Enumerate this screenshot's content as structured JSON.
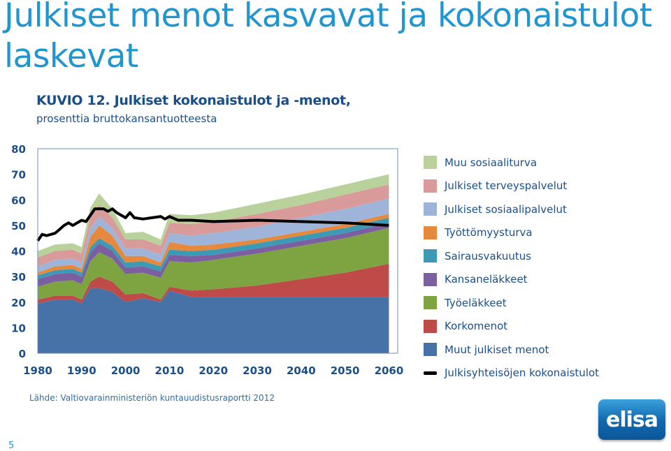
{
  "slide": {
    "title_line1": "Julkiset menot kasvavat ja kokonaistulot",
    "title_line2": "laskevat",
    "source": "Lähde: Valtiovarainministeriön kuntauudistusraportti 2012",
    "page_number": "5",
    "logo_text": "elisa"
  },
  "chart_data": {
    "type": "area",
    "title": "KUVIO 12. Julkiset kokonaistulot ja -menot,",
    "subtitle": "prosenttia bruttokansantuotteesta",
    "ylim": [
      0,
      80
    ],
    "xlim": [
      1980,
      2062
    ],
    "y_ticks": [
      "0",
      "10",
      "20",
      "30",
      "40",
      "50",
      "60",
      "70",
      "80"
    ],
    "x_ticks": [
      "1980",
      "1990",
      "2000",
      "2010",
      "2020",
      "2030",
      "2040",
      "2050",
      "2060"
    ],
    "stacked": true,
    "x": [
      1980,
      1984,
      1988,
      1990,
      1992,
      1994,
      1997,
      2000,
      2004,
      2008,
      2010,
      2015,
      2020,
      2030,
      2040,
      2050,
      2060
    ],
    "series": [
      {
        "name": "Muut julkiset menot",
        "color": "#4672a8",
        "values": [
          19.5,
          21,
          21,
          19.5,
          25.5,
          25.5,
          24,
          20,
          21.5,
          20,
          24.5,
          22,
          22,
          22,
          22,
          22,
          22
        ]
      },
      {
        "name": "Korkomenot",
        "color": "#be4b48",
        "values": [
          1.5,
          1.5,
          1.5,
          1.5,
          2.5,
          4.5,
          4,
          3,
          2,
          1,
          1.5,
          2.5,
          3,
          4.5,
          7,
          9.5,
          13
        ]
      },
      {
        "name": "Työeläkkeet",
        "color": "#7ea441",
        "values": [
          5,
          5.5,
          6,
          6,
          8,
          9.5,
          9,
          8,
          8,
          8.5,
          10,
          11,
          11.5,
          12.5,
          13,
          13.5,
          14
        ]
      },
      {
        "name": "Kansaneläkkeet",
        "color": "#7b5fa1",
        "values": [
          3,
          3,
          3,
          3,
          3.5,
          3.5,
          3,
          2.5,
          2.5,
          2.5,
          2.5,
          2.5,
          2,
          2,
          2,
          2,
          2
        ]
      },
      {
        "name": "Sairausvakuutus",
        "color": "#3c9ab5",
        "values": [
          1.5,
          1.5,
          1.5,
          1.5,
          2,
          2,
          2,
          2,
          2,
          2,
          2,
          2,
          2,
          2,
          2,
          2,
          2
        ]
      },
      {
        "name": "Työttömyysturva",
        "color": "#e6893d",
        "values": [
          1,
          1.5,
          1.5,
          1.5,
          4,
          5,
          4,
          2.5,
          2,
          1.5,
          3,
          2,
          2,
          1.5,
          1.5,
          1.5,
          1.5
        ]
      },
      {
        "name": "Julkiset sosiaalipalvelut",
        "color": "#9fb4d9",
        "values": [
          2.5,
          2.5,
          2.5,
          2.5,
          3.5,
          3.5,
          3,
          3,
          3,
          3,
          3.5,
          4,
          4.5,
          5,
          5.5,
          6,
          6
        ]
      },
      {
        "name": "Julkiset terveyspalvelut",
        "color": "#d89b9a",
        "values": [
          3.5,
          3.5,
          3.5,
          3.5,
          4.5,
          4.5,
          4,
          3.5,
          3.5,
          3.5,
          4,
          4.5,
          4.5,
          5,
          5,
          5.5,
          5.5
        ]
      },
      {
        "name": "Muu sosiaaliturva",
        "color": "#b9d29c",
        "values": [
          2.5,
          2.5,
          2.5,
          2.5,
          3.5,
          4.5,
          3.5,
          2.5,
          3,
          2.5,
          3.5,
          3.5,
          3.5,
          4,
          4,
          4,
          4
        ]
      }
    ],
    "line_series": {
      "name": "Julkisyhteisöjen kokonaistulot",
      "color": "#000000",
      "x": [
        1980,
        1981,
        1982,
        1984,
        1986,
        1987,
        1988,
        1990,
        1991,
        1992,
        1993,
        1995,
        1996,
        1997,
        1998,
        2000,
        2001,
        2002,
        2004,
        2006,
        2008,
        2009,
        2010,
        2012,
        2015,
        2020,
        2030,
        2040,
        2050,
        2060
      ],
      "values": [
        44,
        46.5,
        46,
        47,
        50,
        51,
        50,
        52,
        51.5,
        54,
        56.5,
        56.5,
        55.5,
        56.5,
        55,
        53,
        55,
        53,
        52.5,
        53,
        53.5,
        52.5,
        53.5,
        52,
        52,
        51.5,
        52,
        51.5,
        51,
        50
      ]
    },
    "legend_position": "right"
  }
}
